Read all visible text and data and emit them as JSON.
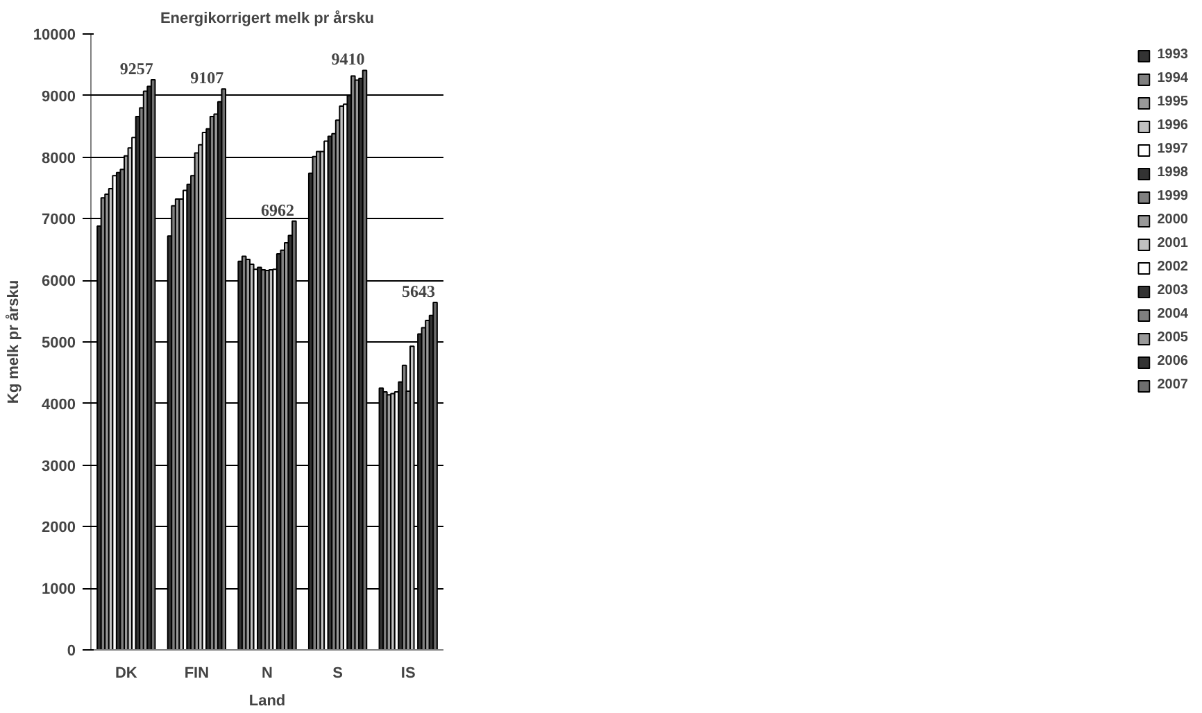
{
  "chart_data": {
    "type": "bar",
    "title": "Energikorrigert melk pr årsku",
    "xlabel": "Land",
    "ylabel": "Kg melk pr årsku",
    "categories": [
      "DK",
      "FIN",
      "N",
      "S",
      "IS"
    ],
    "ylim": [
      0,
      10000
    ],
    "yticks": [
      0,
      1000,
      2000,
      3000,
      4000,
      5000,
      6000,
      7000,
      8000,
      9000,
      10000
    ],
    "grid": "y",
    "legend": "right",
    "series": [
      {
        "name": "1993",
        "color": "#333333",
        "values": [
          6880,
          6720,
          6310,
          7740,
          4250
        ]
      },
      {
        "name": "1994",
        "color": "#808080",
        "values": [
          7340,
          7210,
          6390,
          8010,
          4190
        ]
      },
      {
        "name": "1995",
        "color": "#999999",
        "values": [
          7400,
          7320,
          6340,
          8090,
          4140
        ]
      },
      {
        "name": "1996",
        "color": "#c0c0c0",
        "values": [
          7490,
          7320,
          6260,
          8090,
          4160
        ]
      },
      {
        "name": "1997",
        "color": "#ffffff",
        "values": [
          7700,
          7460,
          6180,
          8260,
          4190
        ]
      },
      {
        "name": "1998",
        "color": "#333333",
        "values": [
          7750,
          7560,
          6210,
          8340,
          4350
        ]
      },
      {
        "name": "1999",
        "color": "#808080",
        "values": [
          7800,
          7700,
          6170,
          8380,
          4620
        ]
      },
      {
        "name": "2000",
        "color": "#999999",
        "values": [
          8020,
          8070,
          6160,
          8600,
          4200
        ]
      },
      {
        "name": "2001",
        "color": "#c0c0c0",
        "values": [
          8150,
          8200,
          6170,
          8830,
          4930
        ]
      },
      {
        "name": "2002",
        "color": "#ffffff",
        "values": [
          8320,
          8400,
          6180,
          8860,
          null
        ]
      },
      {
        "name": "2003",
        "color": "#333333",
        "values": [
          8660,
          8460,
          6430,
          9000,
          5130
        ]
      },
      {
        "name": "2004",
        "color": "#808080",
        "values": [
          8800,
          8660,
          6490,
          9320,
          5230
        ]
      },
      {
        "name": "2005",
        "color": "#999999",
        "values": [
          9070,
          8700,
          6610,
          9250,
          5350
        ]
      },
      {
        "name": "2006",
        "color": "#333333",
        "values": [
          9150,
          8900,
          6730,
          9280,
          5430
        ]
      },
      {
        "name": "2007",
        "color": "#6e6e6e",
        "values": [
          9257,
          9107,
          6962,
          9410,
          5643
        ],
        "value_labels": [
          "9257",
          "9107",
          "6962",
          "9410",
          "5643"
        ]
      }
    ]
  }
}
